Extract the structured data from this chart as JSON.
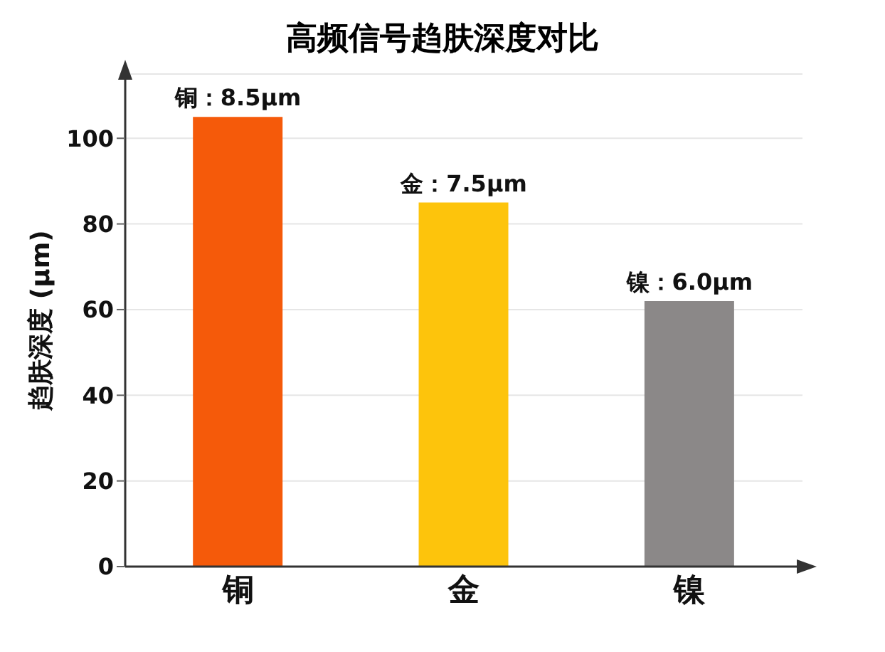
{
  "chart_data": {
    "type": "bar",
    "title": "高频信号趋肤深度对比",
    "ylabel": "趋肤深度 (μm)",
    "categories": [
      "铜",
      "金",
      "镍"
    ],
    "values": [
      105,
      85,
      62
    ],
    "colors": [
      "#f55a0a",
      "#fdc40c",
      "#8b8888"
    ],
    "annotations": [
      {
        "text": "铜：8.5μm",
        "x": "铜",
        "y": 105
      },
      {
        "text": "金：7.5μm",
        "x": "金",
        "y": 85
      },
      {
        "text": "镍：6.0μm",
        "x": "镍",
        "y": 62
      }
    ],
    "ylim": [
      0,
      115
    ],
    "yticks": [
      0,
      20,
      40,
      60,
      80,
      100
    ],
    "grid": "y"
  }
}
